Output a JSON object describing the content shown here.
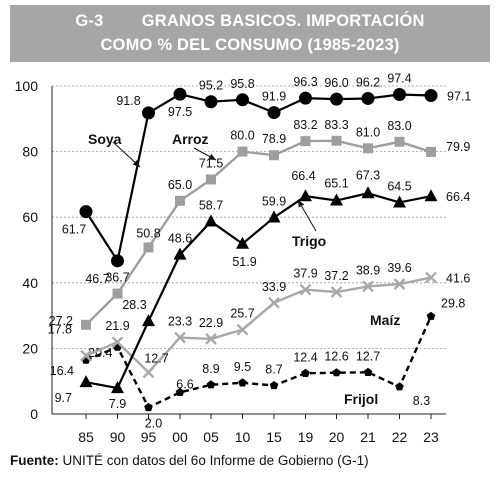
{
  "header": {
    "title_line1": "G-3        GRANOS BASICOS. IMPORTACIÓN",
    "title_line2": "COMO % DEL CONSUMO (1985-2023)"
  },
  "footer": {
    "source_label": "Fuente:",
    "source_text": " UNITÉ con datos del 6o Informe de Gobierno (G-1)"
  },
  "chart_data": {
    "type": "line",
    "title": "GRANOS BASICOS. IMPORTACIÓN COMO % DEL CONSUMO (1985-2023)",
    "xlabel": "",
    "ylabel": "",
    "categories": [
      "85",
      "90",
      "95",
      "00",
      "05",
      "10",
      "15",
      "19",
      "20",
      "21",
      "22",
      "23"
    ],
    "ylim": [
      0,
      100
    ],
    "yticks": [
      0,
      20,
      40,
      60,
      80,
      100
    ],
    "grid": true,
    "series": [
      {
        "name": "Soya",
        "values": [
          61.7,
          46.7,
          91.8,
          97.5,
          95.2,
          95.8,
          91.9,
          96.3,
          96.0,
          96.2,
          97.4,
          97.1
        ],
        "labels": [
          "61.7",
          "46.7",
          "91.8",
          "97.5",
          "95.2",
          "95.8",
          "91.9",
          "96.3",
          "96.0",
          "96.2",
          "97.4",
          "97.1"
        ],
        "color": "#000000",
        "marker": "circle",
        "dash": "solid"
      },
      {
        "name": "Arroz",
        "values": [
          27.2,
          36.7,
          50.8,
          65.0,
          71.5,
          80.0,
          78.9,
          83.2,
          83.3,
          81.0,
          83.0,
          79.9
        ],
        "labels": [
          "27.2",
          "36.7",
          "50.8",
          "65.0",
          "71.5",
          "80.0",
          "78.9",
          "83.2",
          "83.3",
          "81.0",
          "83.0",
          "79.9"
        ],
        "color": "#9e9e9e",
        "marker": "square",
        "dash": "solid"
      },
      {
        "name": "Trigo",
        "values": [
          9.7,
          7.9,
          28.3,
          48.6,
          58.7,
          51.9,
          59.9,
          66.4,
          65.1,
          67.3,
          64.5,
          66.4
        ],
        "labels": [
          "9.7",
          "7.9",
          "28.3",
          "48.6",
          "58.7",
          "51.9",
          "59.9",
          "66.4",
          "65.1",
          "67.3",
          "64.5",
          "66.4"
        ],
        "color": "#000000",
        "marker": "triangle",
        "dash": "solid"
      },
      {
        "name": "Maíz",
        "values": [
          17.8,
          21.9,
          12.7,
          23.3,
          22.9,
          25.7,
          33.9,
          37.9,
          37.2,
          38.9,
          39.6,
          41.6
        ],
        "labels": [
          "17.8",
          "21.9",
          "12.7",
          "23.3",
          "22.9",
          "25.7",
          "33.9",
          "37.9",
          "37.2",
          "38.9",
          "39.6",
          "41.6"
        ],
        "color": "#a8a8a8",
        "marker": "x",
        "dash": "solid"
      },
      {
        "name": "Frijol",
        "values": [
          16.4,
          20.4,
          2.0,
          6.6,
          8.9,
          9.5,
          8.7,
          12.4,
          12.6,
          12.7,
          8.3,
          29.8
        ],
        "labels": [
          "16.4",
          "20.4",
          "2.0",
          "6.6",
          "8.9",
          "9.5",
          "8.7",
          "12.4",
          "12.6",
          "12.7",
          "8.3",
          "29.8"
        ],
        "color": "#000000",
        "marker": "pentagon",
        "dash": "dashed"
      }
    ]
  }
}
